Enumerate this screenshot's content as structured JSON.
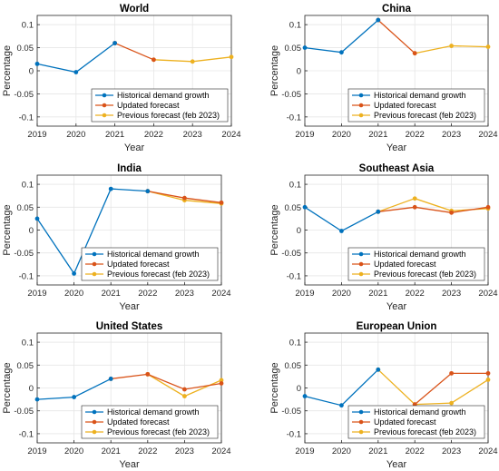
{
  "colors": {
    "historical": "#0072BD",
    "updated": "#D95319",
    "previous": "#EDB120",
    "grid": "#e6e6e6",
    "axis": "#262626"
  },
  "chart_data": [
    {
      "type": "line",
      "title": "World",
      "xlabel": "Year",
      "ylabel": "Percentage",
      "x": [
        2019,
        2020,
        2021,
        2022,
        2023,
        2024
      ],
      "ylim": [
        -0.12,
        0.12
      ],
      "yticks": [
        -0.1,
        -0.05,
        0,
        0.05,
        0.1
      ],
      "yticklabels": [
        "-0.1",
        "-0.05",
        "0",
        "0.05",
        "0.1"
      ],
      "grid": true,
      "legend_position": "bottom-right",
      "series": [
        {
          "name": "Historical demand growth",
          "color_key": "historical",
          "x": [
            2019,
            2020,
            2021
          ],
          "values": [
            0.015,
            -0.003,
            0.06
          ]
        },
        {
          "name": "Updated forecast",
          "color_key": "updated",
          "x": [
            2021,
            2022
          ],
          "values": [
            0.06,
            0.024
          ]
        },
        {
          "name": "Previous forecast (feb 2023)",
          "color_key": "previous",
          "x": [
            2022,
            2023,
            2024
          ],
          "values": [
            0.024,
            0.02,
            0.03
          ]
        }
      ]
    },
    {
      "type": "line",
      "title": "China",
      "xlabel": "Year",
      "ylabel": "Percentage",
      "x": [
        2019,
        2020,
        2021,
        2022,
        2023,
        2024
      ],
      "ylim": [
        -0.12,
        0.12
      ],
      "yticks": [
        -0.1,
        -0.05,
        0,
        0.05,
        0.1
      ],
      "yticklabels": [
        "-0.1",
        "-0.05",
        "0",
        "0.05",
        "0.1"
      ],
      "grid": true,
      "legend_position": "bottom-right",
      "series": [
        {
          "name": "Historical demand growth",
          "color_key": "historical",
          "x": [
            2019,
            2020,
            2021
          ],
          "values": [
            0.05,
            0.04,
            0.11
          ]
        },
        {
          "name": "Updated forecast",
          "color_key": "updated",
          "x": [
            2021,
            2022
          ],
          "values": [
            0.11,
            0.038
          ]
        },
        {
          "name": "Previous forecast (feb 2023)",
          "color_key": "previous",
          "x": [
            2022,
            2023,
            2024
          ],
          "values": [
            0.038,
            0.054,
            0.052
          ]
        }
      ]
    },
    {
      "type": "line",
      "title": "India",
      "xlabel": "Year",
      "ylabel": "Percentage",
      "x": [
        2019,
        2020,
        2021,
        2022,
        2023,
        2024
      ],
      "ylim": [
        -0.12,
        0.12
      ],
      "yticks": [
        -0.1,
        -0.05,
        0,
        0.05,
        0.1
      ],
      "yticklabels": [
        "-0.1",
        "-0.05",
        "0",
        "0.05",
        "0.1"
      ],
      "grid": true,
      "legend_position": "bottom-right",
      "series": [
        {
          "name": "Historical demand growth",
          "color_key": "historical",
          "x": [
            2019,
            2020,
            2021,
            2022
          ],
          "values": [
            0.025,
            -0.095,
            0.09,
            0.085
          ]
        },
        {
          "name": "Updated forecast",
          "color_key": "updated",
          "x": [
            2022,
            2023,
            2024
          ],
          "values": [
            0.085,
            0.07,
            0.06
          ]
        },
        {
          "name": "Previous forecast (feb 2023)",
          "color_key": "previous",
          "x": [
            2022,
            2023,
            2024
          ],
          "values": [
            0.085,
            0.065,
            0.058
          ]
        }
      ]
    },
    {
      "type": "line",
      "title": "Southeast Asia",
      "xlabel": "Year",
      "ylabel": "Percentage",
      "x": [
        2019,
        2020,
        2021,
        2022,
        2023,
        2024
      ],
      "ylim": [
        -0.12,
        0.12
      ],
      "yticks": [
        -0.1,
        -0.05,
        0,
        0.05,
        0.1
      ],
      "yticklabels": [
        "-0.1",
        "-0.05",
        "0",
        "0.05",
        "0.1"
      ],
      "grid": true,
      "legend_position": "bottom-right",
      "series": [
        {
          "name": "Historical demand growth",
          "color_key": "historical",
          "x": [
            2019,
            2020,
            2021
          ],
          "values": [
            0.05,
            -0.002,
            0.04
          ]
        },
        {
          "name": "Updated forecast",
          "color_key": "updated",
          "x": [
            2021,
            2022,
            2023,
            2024
          ],
          "values": [
            0.04,
            0.05,
            0.038,
            0.05
          ]
        },
        {
          "name": "Previous forecast (feb 2023)",
          "color_key": "previous",
          "x": [
            2021,
            2022,
            2023,
            2024
          ],
          "values": [
            0.04,
            0.069,
            0.042,
            0.047
          ]
        }
      ]
    },
    {
      "type": "line",
      "title": "United States",
      "xlabel": "Year",
      "ylabel": "Percentage",
      "x": [
        2019,
        2020,
        2021,
        2022,
        2023,
        2024
      ],
      "ylim": [
        -0.12,
        0.12
      ],
      "yticks": [
        -0.1,
        -0.05,
        0,
        0.05,
        0.1
      ],
      "yticklabels": [
        "-0.1",
        "-0.05",
        "0",
        "0.05",
        "0.1"
      ],
      "grid": true,
      "legend_position": "bottom-right",
      "series": [
        {
          "name": "Historical demand growth",
          "color_key": "historical",
          "x": [
            2019,
            2020,
            2021
          ],
          "values": [
            -0.025,
            -0.02,
            0.02
          ]
        },
        {
          "name": "Updated forecast",
          "color_key": "updated",
          "x": [
            2021,
            2022,
            2023,
            2024
          ],
          "values": [
            0.02,
            0.03,
            -0.003,
            0.01
          ]
        },
        {
          "name": "Previous forecast (feb 2023)",
          "color_key": "previous",
          "x": [
            2022,
            2023,
            2024
          ],
          "values": [
            0.03,
            -0.018,
            0.017
          ]
        }
      ]
    },
    {
      "type": "line",
      "title": "European Union",
      "xlabel": "Year",
      "ylabel": "Percentage",
      "x": [
        2019,
        2020,
        2021,
        2022,
        2023,
        2024
      ],
      "ylim": [
        -0.12,
        0.12
      ],
      "yticks": [
        -0.1,
        -0.05,
        0,
        0.05,
        0.1
      ],
      "yticklabels": [
        "-0.1",
        "-0.05",
        "0",
        "0.05",
        "0.1"
      ],
      "grid": true,
      "legend_position": "bottom-right",
      "series": [
        {
          "name": "Historical demand growth",
          "color_key": "historical",
          "x": [
            2019,
            2020,
            2021
          ],
          "values": [
            -0.018,
            -0.038,
            0.04
          ]
        },
        {
          "name": "Updated forecast",
          "color_key": "updated",
          "x": [
            2022,
            2023,
            2024
          ],
          "values": [
            -0.036,
            0.032,
            0.032
          ]
        },
        {
          "name": "Previous forecast (feb 2023)",
          "color_key": "previous",
          "x": [
            2021,
            2022,
            2023,
            2024
          ],
          "values": [
            0.04,
            -0.036,
            -0.033,
            0.018
          ]
        }
      ]
    }
  ]
}
